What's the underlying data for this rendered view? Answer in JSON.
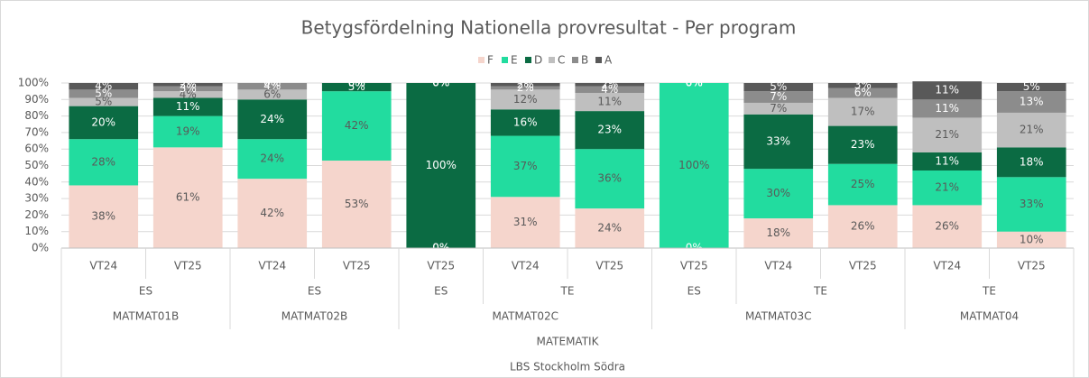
{
  "chart_data": {
    "type": "stacked_bar_100",
    "title": "Betygsfördelning Nationella provresultat - Per program",
    "categories": [
      [
        "LBS Stockholm Södra",
        "MATEMATIK",
        "MATMAT01B",
        "ES",
        "VT24"
      ],
      [
        "LBS Stockholm Södra",
        "MATEMATIK",
        "MATMAT01B",
        "ES",
        "VT25"
      ],
      [
        "LBS Stockholm Södra",
        "MATEMATIK",
        "MATMAT02B",
        "ES",
        "VT24"
      ],
      [
        "LBS Stockholm Södra",
        "MATEMATIK",
        "MATMAT02B",
        "ES",
        "VT25"
      ],
      [
        "LBS Stockholm Södra",
        "MATEMATIK",
        "MATMAT02C",
        "ES",
        "VT25"
      ],
      [
        "LBS Stockholm Södra",
        "MATEMATIK",
        "MATMAT02C",
        "TE",
        "VT24"
      ],
      [
        "LBS Stockholm Södra",
        "MATEMATIK",
        "MATMAT02C",
        "TE",
        "VT25"
      ],
      [
        "LBS Stockholm Södra",
        "MATEMATIK",
        "MATMAT03C",
        "ES",
        "VT25"
      ],
      [
        "LBS Stockholm Södra",
        "MATEMATIK",
        "MATMAT03C",
        "TE",
        "VT24"
      ],
      [
        "LBS Stockholm Södra",
        "MATEMATIK",
        "MATMAT03C",
        "TE",
        "VT25"
      ],
      [
        "LBS Stockholm Södra",
        "MATEMATIK",
        "MATMAT04",
        "TE",
        "VT24"
      ],
      [
        "LBS Stockholm Södra",
        "MATEMATIK",
        "MATMAT04",
        "TE",
        "VT25"
      ]
    ],
    "series": [
      {
        "name": "F",
        "color": "#f5d5cc",
        "values": [
          38,
          61,
          42,
          53,
          0,
          31,
          24,
          0,
          18,
          26,
          26,
          10
        ],
        "value_labels": [
          "38%",
          "61%",
          "42%",
          "53%",
          "0%",
          "31%",
          "24%",
          "0%",
          "18%",
          "26%",
          "26%",
          "10%"
        ]
      },
      {
        "name": "E",
        "color": "#22dc9f",
        "values": [
          28,
          19,
          24,
          42,
          0,
          37,
          36,
          100,
          30,
          25,
          21,
          33
        ],
        "value_labels": [
          "28%",
          "19%",
          "24%",
          "42%",
          "0%",
          "37%",
          "36%",
          "100%",
          "30%",
          "25%",
          "21%",
          "33%"
        ]
      },
      {
        "name": "D",
        "color": "#0b6b43",
        "values": [
          20,
          11,
          24,
          5,
          100,
          16,
          23,
          0,
          33,
          23,
          11,
          18
        ],
        "value_labels": [
          "20%",
          "11%",
          "24%",
          "5%",
          "100%",
          "16%",
          "23%",
          "0%",
          "33%",
          "23%",
          "11%",
          "18%"
        ]
      },
      {
        "name": "C",
        "color": "#bfbfbf",
        "values": [
          5,
          4,
          6,
          0,
          0,
          12,
          11,
          0,
          7,
          17,
          21,
          21
        ],
        "value_labels": [
          "5%",
          "4%",
          "6%",
          "0%",
          "0%",
          "12%",
          "11%",
          "0%",
          "7%",
          "17%",
          "21%",
          "21%"
        ]
      },
      {
        "name": "B",
        "color": "#8c8c8c",
        "values": [
          5,
          3,
          4,
          0,
          0,
          2,
          4,
          0,
          7,
          6,
          11,
          13
        ],
        "value_labels": [
          "5%",
          "3%",
          "4%",
          "0%",
          "0%",
          "2%",
          "4%",
          "0%",
          "7%",
          "6%",
          "11%",
          "13%"
        ]
      },
      {
        "name": "A",
        "color": "#595959",
        "values": [
          4,
          2,
          0,
          0,
          0,
          2,
          2,
          0,
          5,
          3,
          11,
          5
        ],
        "value_labels": [
          "4%",
          "2%",
          "0%",
          "0%",
          "0%",
          "2%",
          "2%",
          "0%",
          "5%",
          "3%",
          "11%",
          "5%"
        ]
      }
    ],
    "ylim": [
      0,
      100
    ],
    "yticks": [
      {
        "value": 0,
        "label": "0%"
      },
      {
        "value": 10,
        "label": "10%"
      },
      {
        "value": 20,
        "label": "20%"
      },
      {
        "value": 30,
        "label": "30%"
      },
      {
        "value": 40,
        "label": "40%"
      },
      {
        "value": 50,
        "label": "50%"
      },
      {
        "value": 60,
        "label": "60%"
      },
      {
        "value": 70,
        "label": "70%"
      },
      {
        "value": 80,
        "label": "80%"
      },
      {
        "value": 90,
        "label": "90%"
      },
      {
        "value": 100,
        "label": "100%"
      }
    ],
    "grid": true,
    "legend": "top"
  }
}
